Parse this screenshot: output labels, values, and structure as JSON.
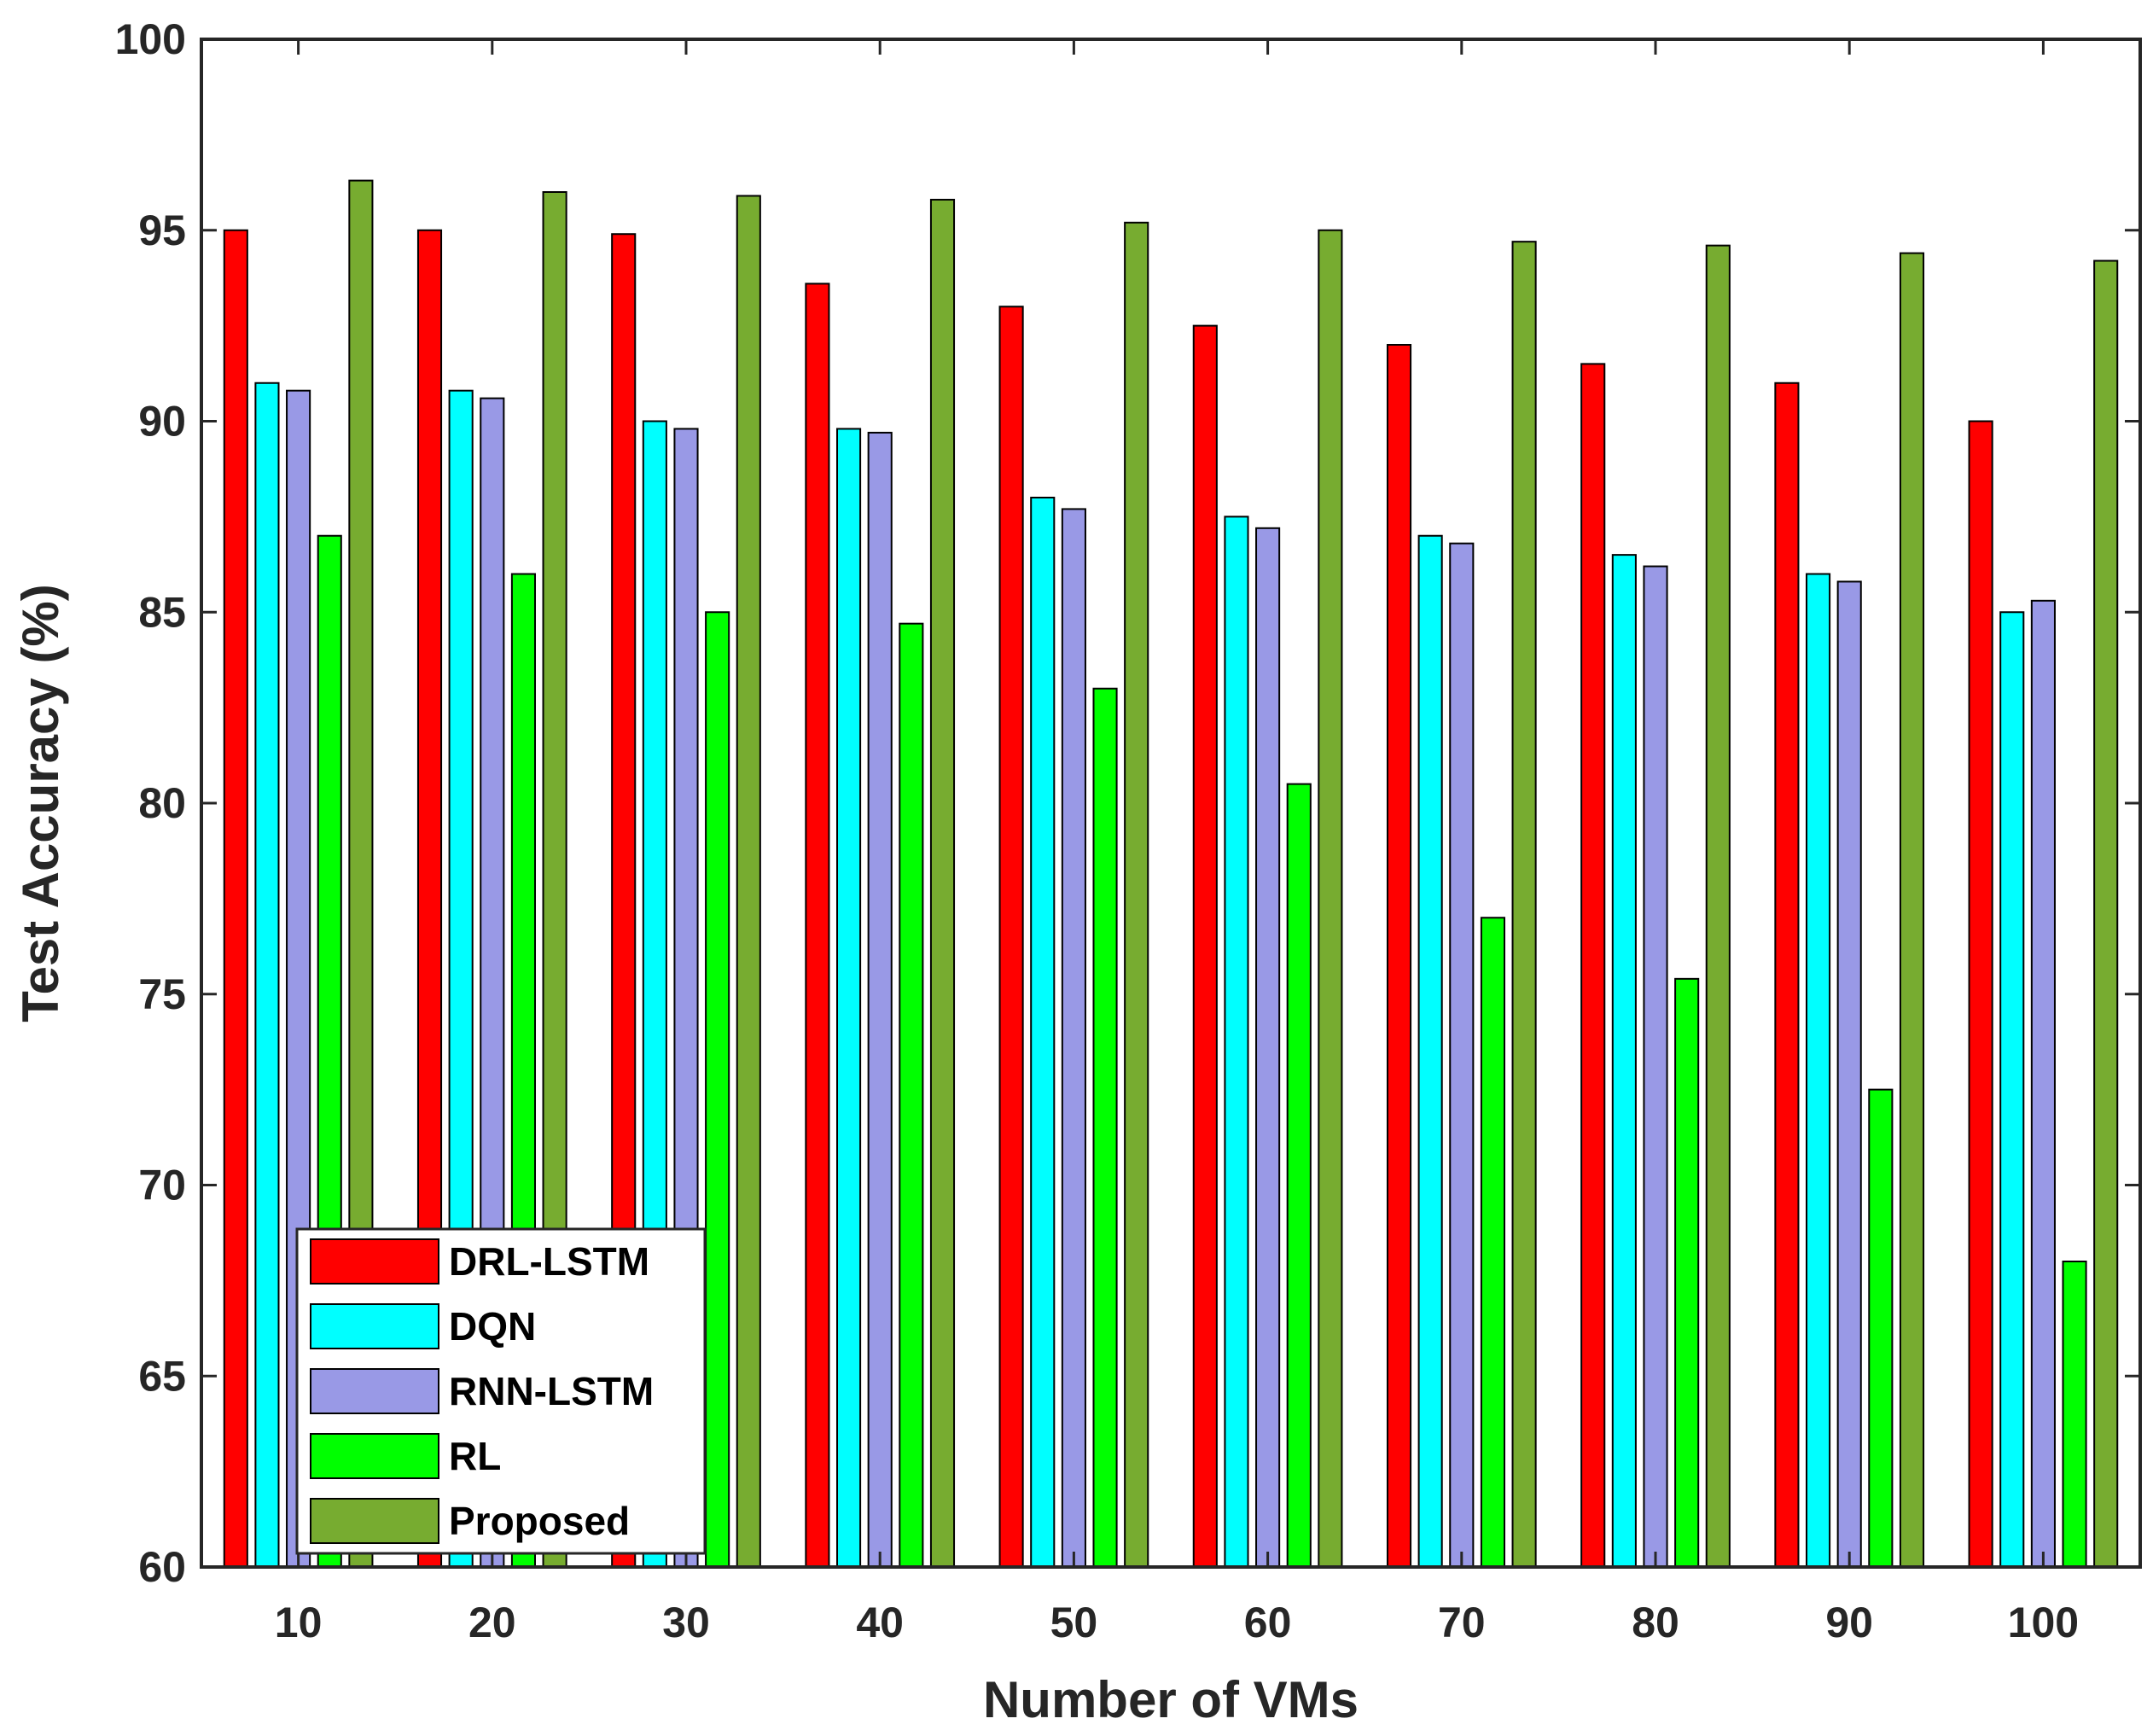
{
  "chart_data": {
    "type": "bar",
    "title": "",
    "xlabel": "Number of VMs",
    "ylabel": "Test Accuracy (%)",
    "ylim": [
      60,
      100
    ],
    "yticks": [
      "60",
      "65",
      "70",
      "75",
      "80",
      "85",
      "90",
      "95",
      "100"
    ],
    "grid": false,
    "legend_position": "bottom-left",
    "categories": [
      "10",
      "20",
      "30",
      "40",
      "50",
      "60",
      "70",
      "80",
      "90",
      "100"
    ],
    "series": [
      {
        "name": "DRL-LSTM",
        "color": "#ff0000",
        "values": [
          95.0,
          95.0,
          94.9,
          93.6,
          93.0,
          92.5,
          92.0,
          91.5,
          91.0,
          90.0
        ]
      },
      {
        "name": "DQN",
        "color": "#00ffff",
        "values": [
          91.0,
          90.8,
          90.0,
          89.8,
          88.0,
          87.5,
          87.0,
          86.5,
          86.0,
          85.0
        ]
      },
      {
        "name": "RNN-LSTM",
        "color": "#9999e6",
        "values": [
          90.8,
          90.6,
          89.8,
          89.7,
          87.7,
          87.2,
          86.8,
          86.2,
          85.8,
          85.3
        ]
      },
      {
        "name": "RL",
        "color": "#00ff00",
        "values": [
          87.0,
          86.0,
          85.0,
          84.7,
          83.0,
          80.5,
          77.0,
          75.4,
          72.5,
          68.0
        ]
      },
      {
        "name": "Proposed",
        "color": "#77ac30",
        "values": [
          96.3,
          96.0,
          95.9,
          95.8,
          95.2,
          95.0,
          94.7,
          94.6,
          94.4,
          94.2
        ]
      }
    ]
  }
}
